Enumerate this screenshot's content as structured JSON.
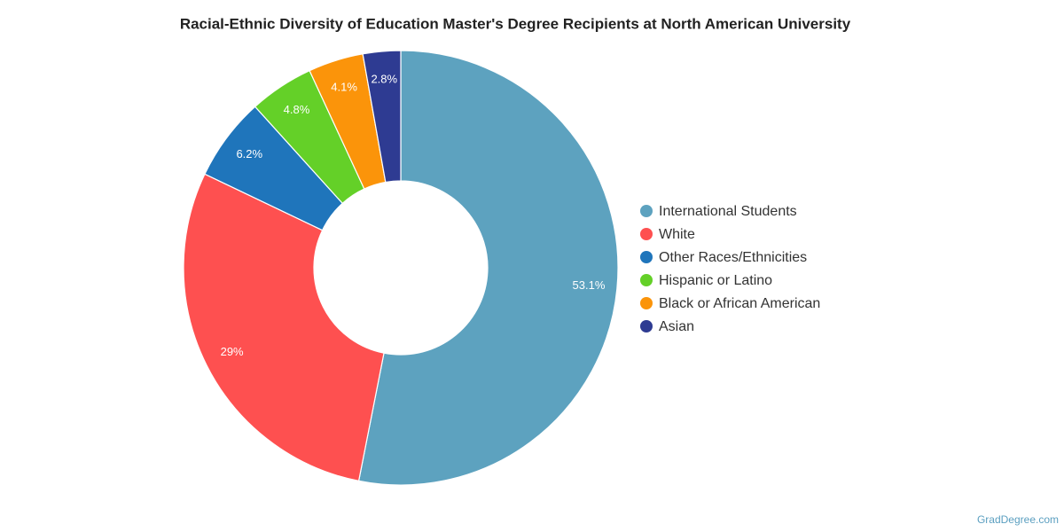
{
  "chart_data": {
    "type": "donut",
    "title": "Racial-Ethnic Diversity of Education Master's Degree Recipients at North American University",
    "categories": [
      "International Students",
      "White",
      "Other Races/Ethnicities",
      "Hispanic or Latino",
      "Black or African American",
      "Asian"
    ],
    "values": [
      53.1,
      29,
      6.2,
      4.8,
      4.1,
      2.8
    ],
    "value_labels": [
      "53.1%",
      "29%",
      "6.2%",
      "4.8%",
      "4.1%",
      "2.8%"
    ],
    "colors": [
      "#5da2bf",
      "#fe5050",
      "#1f75bb",
      "#64d028",
      "#fb940a",
      "#2e3b92"
    ],
    "legend": "right",
    "source": "GradDegree.com"
  }
}
